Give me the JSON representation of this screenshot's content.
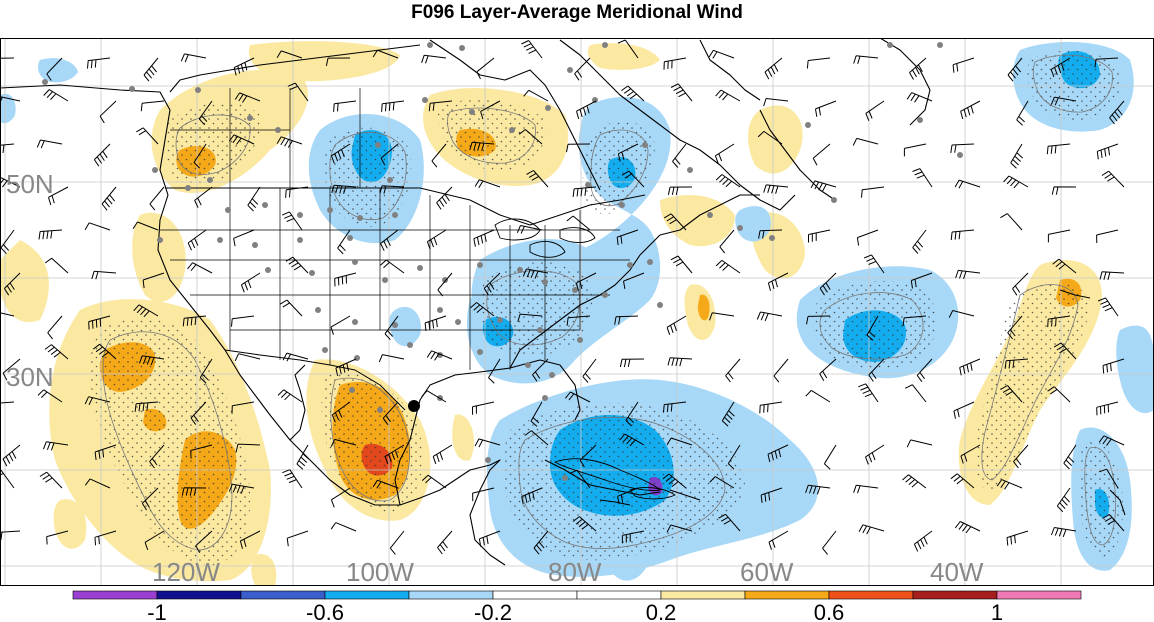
{
  "title": "F096 Layer-Average Meridional Wind",
  "latitude_labels": [
    "50N",
    "30N"
  ],
  "longitude_labels": [
    "120W",
    "100W",
    "80W",
    "60W",
    "40W"
  ],
  "colorbar": {
    "colors": [
      "#9a3fd0",
      "#11118f",
      "#3a5fcc",
      "#13adef",
      "#a7d8f7",
      "#ffffff",
      "#ffffff",
      "#fbe9a2",
      "#f5a919",
      "#f0501a",
      "#a61f1f",
      "#f07ab6"
    ],
    "labels": [
      "-1",
      "-0.6",
      "-0.2",
      "0.2",
      "0.6",
      "1"
    ]
  },
  "legend_colors": {
    "light_blue": "#a7d8f7",
    "mid_blue": "#13adef",
    "light_yellow": "#fbe9a2",
    "orange": "#f5a919",
    "red": "#e2481c",
    "purple": "#7e3fc9"
  }
}
